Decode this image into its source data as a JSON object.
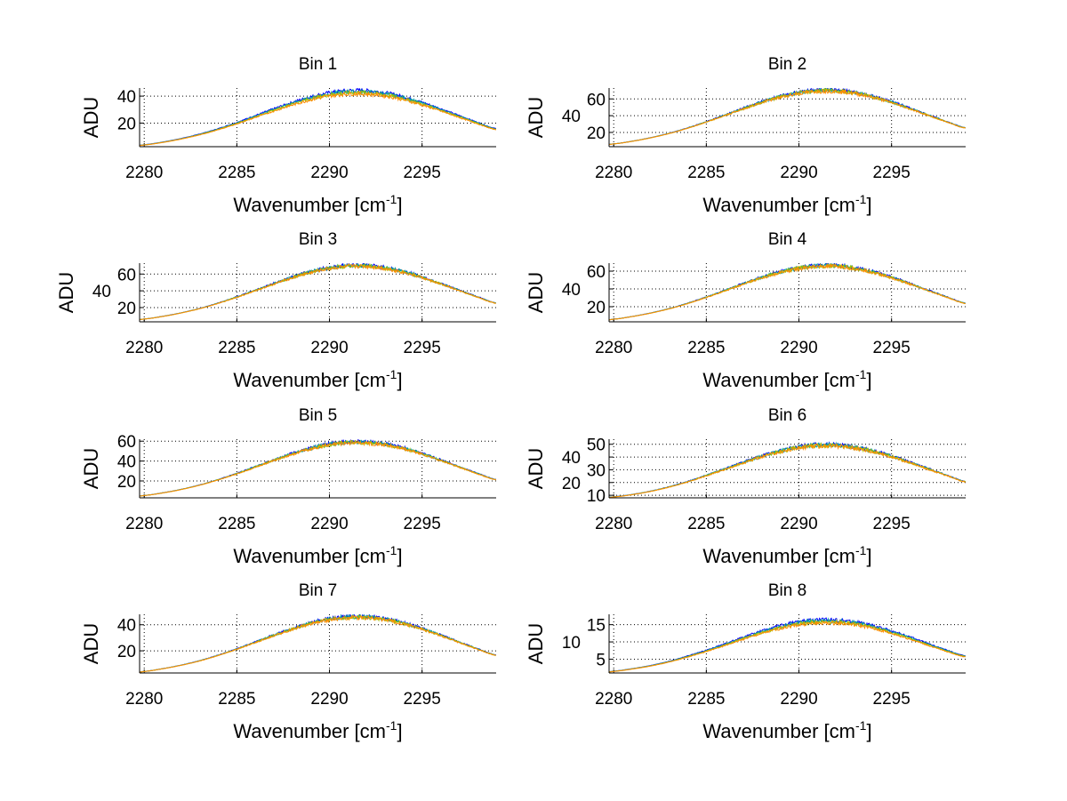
{
  "chart_data": [
    {
      "type": "line",
      "title": "Bin 1",
      "xlabel": "Wavenumber [cm",
      "xlabel_sup": "-1",
      "xlabel_end": "]",
      "ylabel": "ADU",
      "xlim": [
        2279.75,
        2299
      ],
      "ylim": [
        2.5,
        46
      ],
      "xticks": [
        2280,
        2285,
        2290,
        2295
      ],
      "yticks": [
        20,
        40
      ],
      "grid": true,
      "x": [
        2280,
        2281,
        2282,
        2283,
        2284,
        2285,
        2286,
        2287,
        2288,
        2289,
        2290,
        2291,
        2292,
        2293,
        2294,
        2295,
        2296,
        2297,
        2298,
        2299
      ],
      "values": [
        3.9,
        5.8,
        8.4,
        11.6,
        15.5,
        20.0,
        24.9,
        29.8,
        34.4,
        38.4,
        41.3,
        42.8,
        42.8,
        41.3,
        38.4,
        34.4,
        29.8,
        24.9,
        20.0,
        15.5
      ]
    },
    {
      "type": "line",
      "title": "Bin 2",
      "xlabel": "Wavenumber [cm",
      "xlabel_sup": "-1",
      "xlabel_end": "]",
      "ylabel": "ADU",
      "xlim": [
        2279.75,
        2299
      ],
      "ylim": [
        3,
        73
      ],
      "xticks": [
        2280,
        2285,
        2290,
        2295
      ],
      "yticks": [
        20,
        40,
        60
      ],
      "grid": true,
      "x": [
        2280,
        2281,
        2282,
        2283,
        2284,
        2285,
        2286,
        2287,
        2288,
        2289,
        2290,
        2291,
        2292,
        2293,
        2294,
        2295,
        2296,
        2297,
        2298,
        2299
      ],
      "values": [
        6.4,
        9.5,
        13.7,
        18.9,
        25.3,
        32.6,
        40.5,
        48.5,
        56.1,
        62.5,
        67.2,
        69.7,
        69.7,
        67.2,
        62.5,
        56.1,
        48.5,
        40.5,
        32.6,
        25.3
      ]
    },
    {
      "type": "line",
      "title": "Bin 3",
      "xlabel": "Wavenumber [cm",
      "xlabel_sup": "-1",
      "xlabel_end": "]",
      "ylabel": "ADU",
      "xlim": [
        2279.75,
        2299
      ],
      "ylim": [
        3,
        73
      ],
      "xticks": [
        2280,
        2285,
        2290,
        2295
      ],
      "yticks": [
        20,
        40,
        60
      ],
      "grid": true,
      "x": [
        2280,
        2281,
        2282,
        2283,
        2284,
        2285,
        2286,
        2287,
        2288,
        2289,
        2290,
        2291,
        2292,
        2293,
        2294,
        2295,
        2296,
        2297,
        2298,
        2299
      ],
      "values": [
        6.4,
        9.5,
        13.7,
        18.9,
        25.3,
        32.6,
        40.5,
        48.5,
        56.1,
        62.5,
        67.2,
        69.7,
        69.7,
        67.2,
        62.5,
        56.1,
        48.5,
        40.5,
        32.6,
        25.3
      ]
    },
    {
      "type": "line",
      "title": "Bin 4",
      "xlabel": "Wavenumber [cm",
      "xlabel_sup": "-1",
      "xlabel_end": "]",
      "ylabel": "ADU",
      "xlim": [
        2279.75,
        2299
      ],
      "ylim": [
        3,
        69
      ],
      "xticks": [
        2280,
        2285,
        2290,
        2295
      ],
      "yticks": [
        20,
        40,
        60
      ],
      "grid": true,
      "x": [
        2280,
        2281,
        2282,
        2283,
        2284,
        2285,
        2286,
        2287,
        2288,
        2289,
        2290,
        2291,
        2292,
        2293,
        2294,
        2295,
        2296,
        2297,
        2298,
        2299
      ],
      "values": [
        6.0,
        9.0,
        12.9,
        17.8,
        23.8,
        30.7,
        38.1,
        45.7,
        52.9,
        58.9,
        63.4,
        65.7,
        65.7,
        63.4,
        58.9,
        52.9,
        45.7,
        38.1,
        30.7,
        23.8
      ]
    },
    {
      "type": "line",
      "title": "Bin 5",
      "xlabel": "Wavenumber [cm",
      "xlabel_sup": "-1",
      "xlabel_end": "]",
      "ylabel": "ADU",
      "xlim": [
        2279.75,
        2299
      ],
      "ylim": [
        3,
        62
      ],
      "xticks": [
        2280,
        2285,
        2290,
        2295
      ],
      "yticks": [
        20,
        40,
        60
      ],
      "grid": true,
      "x": [
        2280,
        2281,
        2282,
        2283,
        2284,
        2285,
        2286,
        2287,
        2288,
        2289,
        2290,
        2291,
        2292,
        2293,
        2294,
        2295,
        2296,
        2297,
        2298,
        2299
      ],
      "values": [
        5.4,
        8.0,
        11.5,
        15.9,
        21.3,
        27.4,
        34.1,
        40.9,
        47.3,
        52.7,
        56.6,
        58.7,
        58.7,
        56.6,
        52.7,
        47.3,
        40.9,
        34.1,
        27.4,
        21.3
      ]
    },
    {
      "type": "line",
      "title": "Bin 6",
      "xlabel": "Wavenumber [cm",
      "xlabel_sup": "-1",
      "xlabel_end": "]",
      "ylabel": "ADU",
      "xlim": [
        2279.75,
        2299
      ],
      "ylim": [
        8,
        54
      ],
      "xticks": [
        2280,
        2285,
        2290,
        2295
      ],
      "yticks": [
        10,
        20,
        30,
        40,
        50
      ],
      "grid": true,
      "x": [
        2280,
        2281,
        2282,
        2283,
        2284,
        2285,
        2286,
        2287,
        2288,
        2289,
        2290,
        2291,
        2292,
        2293,
        2294,
        2295,
        2296,
        2297,
        2298,
        2299
      ],
      "values": [
        8.8,
        10.6,
        13.2,
        16.6,
        20.7,
        25.5,
        30.6,
        35.7,
        40.5,
        44.5,
        47.5,
        49.1,
        49.1,
        47.5,
        44.5,
        40.5,
        35.7,
        30.6,
        25.5,
        20.7
      ]
    },
    {
      "type": "line",
      "title": "Bin 7",
      "xlabel": "Wavenumber [cm",
      "xlabel_sup": "-1",
      "xlabel_end": "]",
      "ylabel": "ADU",
      "xlim": [
        2279.75,
        2299
      ],
      "ylim": [
        3,
        48
      ],
      "xticks": [
        2280,
        2285,
        2290,
        2295
      ],
      "yticks": [
        20,
        40
      ],
      "grid": true,
      "x": [
        2280,
        2281,
        2282,
        2283,
        2284,
        2285,
        2286,
        2287,
        2288,
        2289,
        2290,
        2291,
        2292,
        2293,
        2294,
        2295,
        2296,
        2297,
        2298,
        2299
      ],
      "values": [
        4.2,
        6.3,
        9.0,
        12.4,
        16.6,
        21.4,
        26.6,
        31.9,
        36.8,
        41.1,
        44.2,
        45.8,
        45.8,
        44.2,
        41.1,
        36.8,
        31.9,
        26.6,
        21.4,
        16.6
      ]
    },
    {
      "type": "line",
      "title": "Bin 8",
      "xlabel": "Wavenumber [cm",
      "xlabel_sup": "-1",
      "xlabel_end": "]",
      "ylabel": "ADU",
      "xlim": [
        2279.75,
        2299
      ],
      "ylim": [
        1,
        18
      ],
      "xticks": [
        2280,
        2285,
        2290,
        2295
      ],
      "yticks": [
        5,
        10,
        15
      ],
      "grid": true,
      "x": [
        2280,
        2281,
        2282,
        2283,
        2284,
        2285,
        2286,
        2287,
        2288,
        2289,
        2290,
        2291,
        2292,
        2293,
        2294,
        2295,
        2296,
        2297,
        2298,
        2299
      ],
      "values": [
        1.5,
        2.2,
        3.1,
        4.3,
        5.8,
        7.4,
        9.2,
        11.1,
        12.8,
        14.3,
        15.4,
        15.9,
        15.9,
        15.4,
        14.3,
        12.8,
        11.1,
        9.2,
        7.4,
        5.8
      ]
    }
  ],
  "series_colors": [
    "#0000ff",
    "#00a0a0",
    "#a0c000",
    "#ff8c00"
  ]
}
